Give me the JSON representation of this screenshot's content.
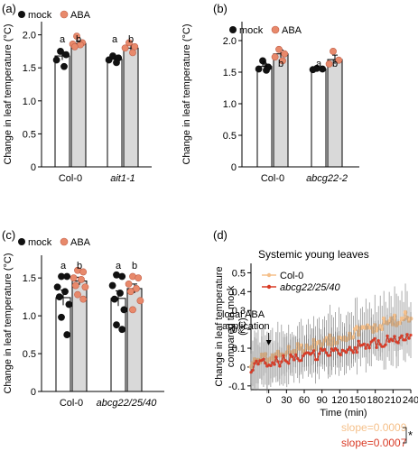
{
  "figure": {
    "colors": {
      "mock": "#111111",
      "aba": "#e8896b",
      "bar_mock": "#ffffff",
      "bar_aba": "#d9d9d9",
      "ts_col0": "#f5c08a",
      "ts_abcg": "#d93a25",
      "errorbar": "#6b6b6b",
      "axis": "#000000"
    },
    "legend": {
      "mock": "mock",
      "aba": "ABA"
    }
  },
  "chart_data": [
    {
      "panel": "(a)",
      "type": "bar",
      "categories": [
        "Col-0",
        "ait1-1"
      ],
      "italic_categories": [
        false,
        true
      ],
      "series": [
        {
          "name": "mock",
          "values": [
            1.68,
            1.63
          ],
          "errors": [
            0.06,
            0.04
          ]
        },
        {
          "name": "ABA",
          "values": [
            1.87,
            1.8
          ],
          "errors": [
            0.04,
            0.05
          ]
        }
      ],
      "points": [
        [
          [
            1.75,
            1.7,
            1.62,
            1.52
          ],
          [
            1.98,
            1.88,
            1.86,
            1.85,
            1.82
          ]
        ],
        [
          [
            1.68,
            1.65,
            1.62,
            1.58
          ],
          [
            1.88,
            1.82,
            1.8,
            1.73
          ]
        ]
      ],
      "letters": [
        [
          "a",
          "b"
        ],
        [
          "a",
          "b"
        ]
      ],
      "ylabel": "Change in leaf temperature (°C)",
      "ylim": [
        0,
        2.2
      ],
      "yticks": [
        0,
        0.5,
        1.0,
        1.5,
        2.0
      ],
      "ytick_labels": [
        "0",
        "0.5",
        "1.0",
        "1.5",
        "2.0"
      ]
    },
    {
      "panel": "(b)",
      "type": "bar",
      "categories": [
        "Col-0",
        "abcg22-2"
      ],
      "italic_categories": [
        false,
        true
      ],
      "series": [
        {
          "name": "mock",
          "values": [
            1.59,
            1.55
          ],
          "errors": [
            0.04,
            0.01
          ]
        },
        {
          "name": "ABA",
          "values": [
            1.79,
            1.7
          ],
          "errors": [
            0.06,
            0.07
          ]
        }
      ],
      "points": [
        [
          [
            1.68,
            1.58,
            1.55,
            1.53
          ],
          [
            1.86,
            1.79,
            1.74,
            1.68
          ]
        ],
        [
          [
            1.56,
            1.55,
            1.54
          ],
          [
            1.83,
            1.69,
            1.63
          ]
        ]
      ],
      "letters": [
        [
          "a",
          "b"
        ],
        [
          "a",
          "b"
        ]
      ],
      "ylabel": "Change in leaf temperature (°C)",
      "ylim": [
        0,
        2.3
      ],
      "yticks": [
        0,
        0.5,
        1.0,
        1.5,
        2.0
      ],
      "ytick_labels": [
        "0",
        "0.5",
        "1.0",
        "1.5",
        "2.0"
      ]
    },
    {
      "panel": "(c)",
      "type": "bar",
      "categories": [
        "Col-0",
        "abcg22/25/40"
      ],
      "italic_categories": [
        false,
        true
      ],
      "series": [
        {
          "name": "mock",
          "values": [
            1.24,
            1.23
          ],
          "errors": [
            0.1,
            0.1
          ]
        },
        {
          "name": "ABA",
          "values": [
            1.46,
            1.36
          ],
          "errors": [
            0.05,
            0.06
          ]
        }
      ],
      "points": [
        [
          [
            1.52,
            1.52,
            1.38,
            1.32,
            1.25,
            1.15,
            0.98,
            0.75
          ],
          [
            1.6,
            1.58,
            1.5,
            1.48,
            1.4,
            1.38,
            1.28,
            1.22
          ]
        ],
        [
          [
            1.54,
            1.52,
            1.4,
            1.3,
            1.22,
            1.08,
            0.88,
            0.82
          ],
          [
            1.52,
            1.5,
            1.42,
            1.36,
            1.32,
            1.2,
            1.08
          ]
        ]
      ],
      "letters": [
        [
          "a",
          "b"
        ],
        [
          "a",
          "b"
        ]
      ],
      "ylabel": "Change in leaf temperature (°C)",
      "ylim": [
        0,
        1.8
      ],
      "yticks": [
        0,
        0.5,
        1.0,
        1.5
      ],
      "ytick_labels": [
        "0",
        "0.5",
        "1.0",
        "1.5"
      ]
    },
    {
      "panel": "(d)",
      "type": "line",
      "title": "Systemic young leaves",
      "xlabel": "Time (min)",
      "ylabel": "Change in leaf temperature compared to mock (°C)",
      "ylabel_lines": [
        "Change in leaf temperature",
        "compared to mock",
        "(°C)"
      ],
      "xlim": [
        -30,
        240
      ],
      "ylim": [
        -0.12,
        0.55
      ],
      "xticks": [
        0,
        30,
        60,
        90,
        120,
        150,
        180,
        210,
        240
      ],
      "yticks": [
        -0.1,
        0,
        0.1,
        0.2,
        0.3,
        0.4,
        0.5
      ],
      "ytick_labels": [
        "-0.1",
        "0",
        "0.1",
        "0.2",
        "0.3",
        "0.4",
        "0.5"
      ],
      "annotation": {
        "lines": [
          "local ABA",
          "application"
        ],
        "x": 0
      },
      "series": [
        {
          "name": "Col-0",
          "x_start": -30,
          "x_end": 240,
          "y_start": 0.02,
          "y_end": 0.27,
          "error": 0.12
        },
        {
          "name": "abcg22/25/40",
          "x_start": -30,
          "x_end": 240,
          "y_start": 0.0,
          "y_end": 0.16,
          "error": 0.1
        }
      ],
      "legend_italic": [
        false,
        true
      ],
      "slopes": [
        "slope=0.0009",
        "slope=0.0007"
      ],
      "significance": "*"
    }
  ]
}
